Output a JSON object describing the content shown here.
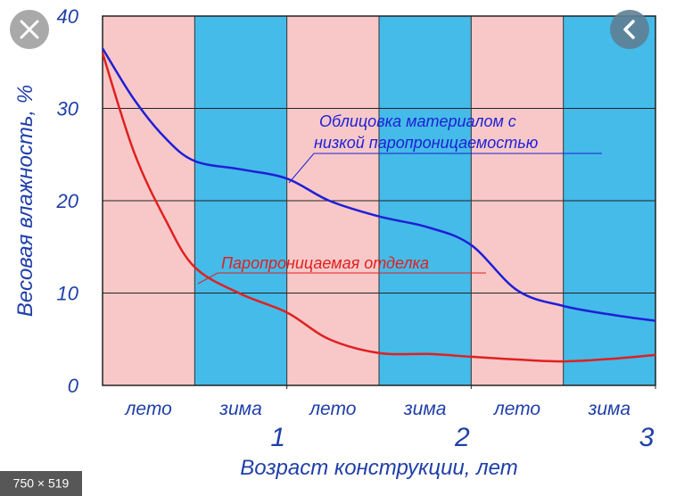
{
  "chart_data": {
    "type": "line",
    "x": [
      0,
      0.17,
      0.34,
      0.5,
      0.75,
      1,
      1.23,
      1.5,
      1.77,
      2,
      2.25,
      2.5,
      2.78,
      3
    ],
    "series": [
      {
        "name": "Облицовка материалом с низкой паропроницаемостью",
        "color": "#1f1fd6",
        "values": [
          36.5,
          31,
          26.8,
          24.3,
          23.4,
          22.4,
          20,
          18.3,
          17.1,
          15.2,
          10.3,
          8.6,
          7.6,
          7
        ]
      },
      {
        "name": "Паропроницаемая отделка",
        "color": "#e02020",
        "values": [
          36,
          25.3,
          18,
          12.8,
          9.9,
          7.9,
          5,
          3.5,
          3.4,
          3.1,
          2.8,
          2.6,
          2.9,
          3.3
        ]
      }
    ],
    "annotations": [
      "Облицовка материалом с",
      "низкой паропроницаемостью",
      "Паропроницаемая отделка"
    ],
    "season_labels": [
      "лето",
      "зима",
      "лето",
      "зима",
      "лето",
      "зима"
    ],
    "band_colors": [
      "#f8c8c8",
      "#44bbe8"
    ],
    "xlim": [
      0,
      3
    ],
    "xticks": [
      1,
      2,
      3
    ],
    "ylim": [
      0,
      40
    ],
    "yticks": [
      0,
      10,
      20,
      30,
      40
    ],
    "xlabel": "Возраст конструкции, лет",
    "ylabel": "Весовая влажность, %",
    "grid": true
  },
  "ui": {
    "image_size": "750 × 519"
  }
}
